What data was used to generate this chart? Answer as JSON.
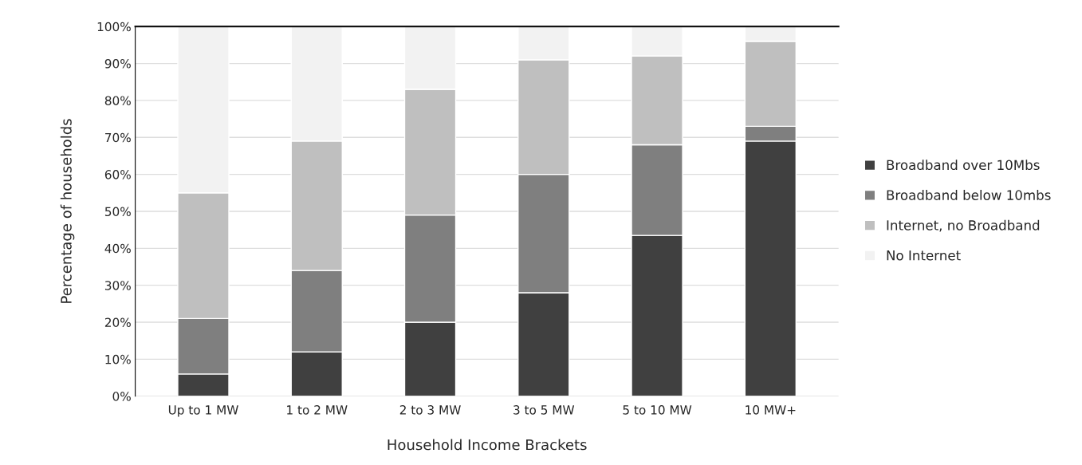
{
  "chart_data": {
    "type": "bar",
    "stacked": true,
    "xlabel": "Household Income Brackets",
    "ylabel": "Percentage of households",
    "categories": [
      "Up to 1 MW",
      "1 to 2 MW",
      "2 to 3 MW",
      "3 to 5 MW",
      "5 to 10 MW",
      "10 MW+"
    ],
    "series": [
      {
        "name": "Broadband over 10Mbs",
        "color": "#404040",
        "values": [
          6,
          12,
          20,
          28,
          43.5,
          69
        ]
      },
      {
        "name": "Broadband below 10mbs",
        "color": "#7f7f7f",
        "values": [
          15,
          22,
          29,
          32,
          24.5,
          4
        ]
      },
      {
        "name": "Internet, no Broadband",
        "color": "#bfbfbf",
        "values": [
          34,
          35,
          34,
          31,
          24,
          23
        ]
      },
      {
        "name": "No Internet",
        "color": "#f2f2f2",
        "values": [
          45,
          31,
          17,
          9,
          8,
          4
        ]
      }
    ],
    "ylim": [
      0,
      100
    ],
    "yticks": [
      {
        "value": 0,
        "label": "0%"
      },
      {
        "value": 10,
        "label": "10%"
      },
      {
        "value": 20,
        "label": "20%"
      },
      {
        "value": 30,
        "label": "30%"
      },
      {
        "value": 40,
        "label": "40%"
      },
      {
        "value": 50,
        "label": "50%"
      },
      {
        "value": 60,
        "label": "60%"
      },
      {
        "value": 70,
        "label": "70%"
      },
      {
        "value": 80,
        "label": "80%"
      },
      {
        "value": 90,
        "label": "90%"
      },
      {
        "value": 100,
        "label": "100%"
      }
    ],
    "grid": "y",
    "legend": "right"
  }
}
